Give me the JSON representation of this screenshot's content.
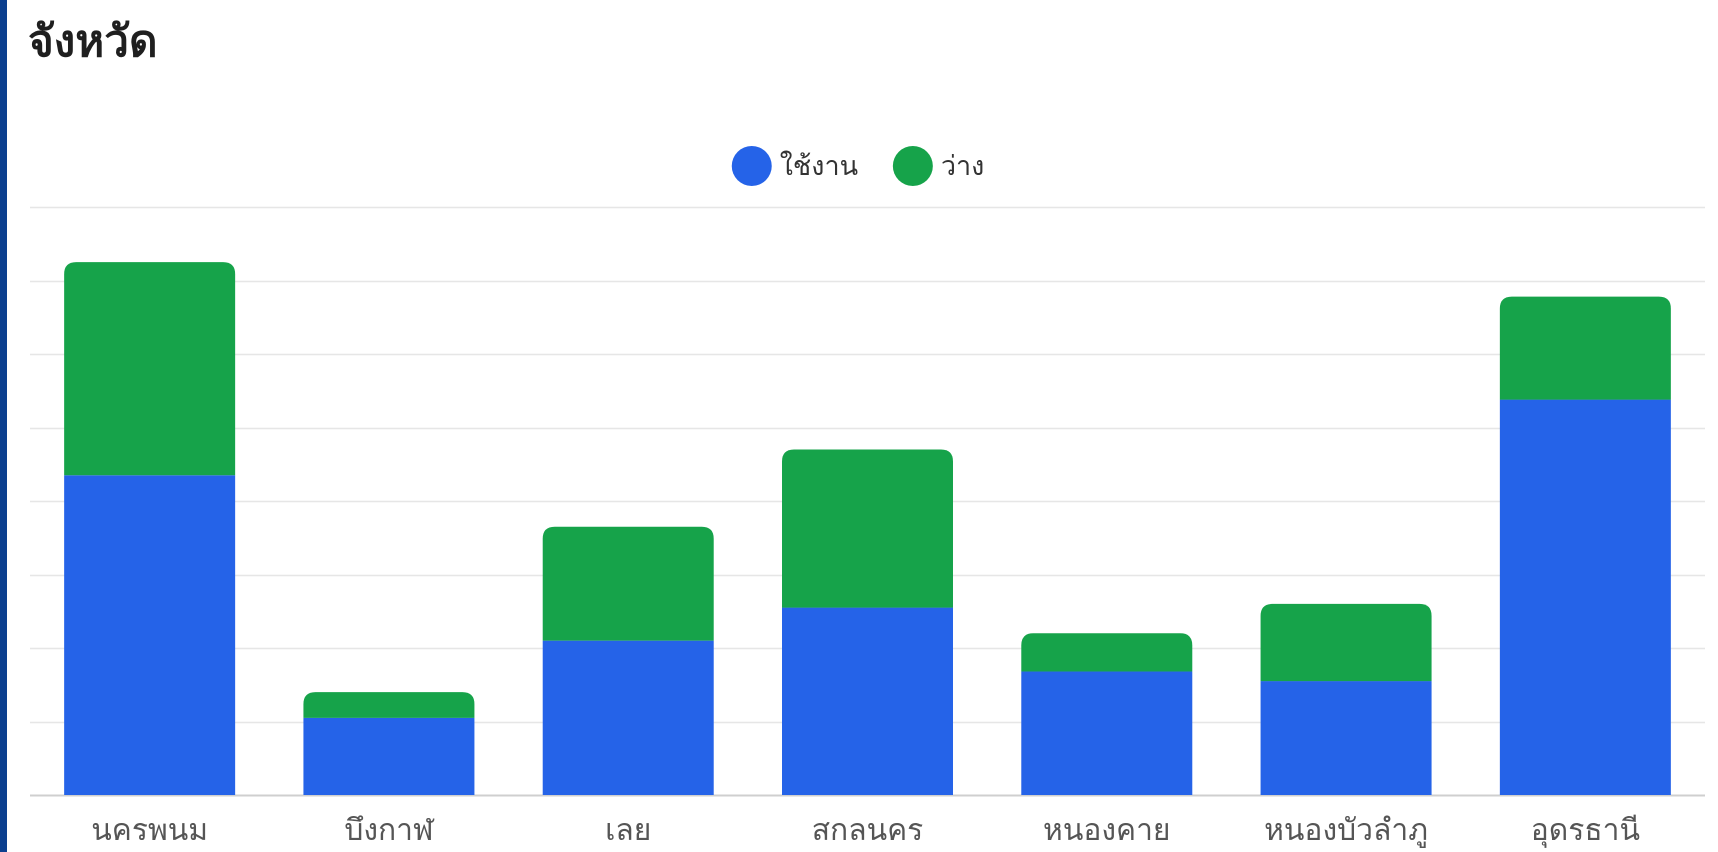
{
  "chart_data": {
    "type": "bar",
    "stacked": true,
    "title": "จังหวัด",
    "categories": [
      "นครพนม",
      "บึงกาฬ",
      "เลย",
      "สกลนคร",
      "หนองคาย",
      "หนองบัวลำภู",
      "อุดรธานี"
    ],
    "series": [
      {
        "name": "ใช้งาน",
        "color": "#2563e8",
        "values": [
          4.35,
          1.05,
          2.1,
          2.55,
          1.68,
          1.55,
          5.38
        ]
      },
      {
        "name": "ว่าง",
        "color": "#16a34a",
        "values": [
          2.9,
          0.35,
          1.55,
          2.15,
          0.52,
          1.05,
          1.4
        ]
      }
    ],
    "ylim": [
      0,
      8
    ],
    "grid": true,
    "y_tick_labels_shown": false,
    "legend": {
      "position": "top-center",
      "marker": "circle"
    },
    "gridline_color": "#e6e6e6",
    "axis_color": "#cfcfcf",
    "label_color": "#555555"
  }
}
